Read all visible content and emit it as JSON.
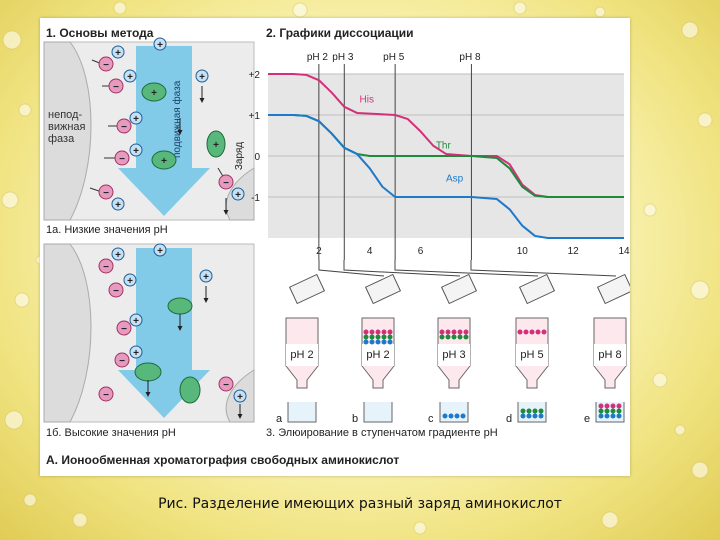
{
  "panel1": {
    "title": "1. Основы метода",
    "stationary_lines": [
      "непод-",
      "вижная",
      "фаза"
    ],
    "mobile_label": "подвижная фаза",
    "label_a": "1а. Низкие значения pH",
    "label_b": "1б. Высокие значения pH"
  },
  "panel2": {
    "title": "2. Графики диссоциации",
    "ph_markers": [
      "pH 2",
      "pH 3",
      "pH 5",
      "pH 8"
    ],
    "y_label": "Заряд",
    "series_labels": [
      "His",
      "Thr",
      "Asp"
    ]
  },
  "panel3": {
    "title": "3. Элюирование в ступенчатом градиенте pH",
    "columns": [
      {
        "ph": "pH 2",
        "letter": "a"
      },
      {
        "ph": "pH 2",
        "letter": "b"
      },
      {
        "ph": "pH 3",
        "letter": "c"
      },
      {
        "ph": "pH 5",
        "letter": "d"
      },
      {
        "ph": "pH 8",
        "letter": "e"
      }
    ]
  },
  "figure_title": "А. Ионообменная хроматография свободных аминокислот",
  "caption": "Рис. Разделение имеющих разный заряд аминокислот",
  "chart_data": {
    "type": "line",
    "title": "2. Графики диссоциации",
    "xlabel": "",
    "ylabel": "Заряд",
    "xlim": [
      0,
      14
    ],
    "ylim": [
      -2,
      2
    ],
    "x_ticks": [
      2,
      4,
      6,
      10,
      12,
      14
    ],
    "y_tick_labels": [
      "+2",
      "+1",
      "0",
      "-1"
    ],
    "y_ticks": [
      2,
      1,
      0,
      -1
    ],
    "series": [
      {
        "name": "His",
        "color": "#d4307a",
        "x": [
          0,
          1,
          1.5,
          2,
          2.5,
          3,
          3.5,
          5,
          5.5,
          6,
          6.5,
          7,
          8,
          9,
          9.5,
          10,
          10.5,
          11,
          14
        ],
        "y": [
          2,
          2,
          1.98,
          1.85,
          1.55,
          1.2,
          1.05,
          1.0,
          0.9,
          0.6,
          0.25,
          0.05,
          0,
          0,
          -0.2,
          -0.7,
          -0.95,
          -1.0,
          -1.0
        ]
      },
      {
        "name": "Thr",
        "color": "#1f8a3c",
        "x": [
          0,
          1,
          1.5,
          2,
          2.5,
          3,
          3.5,
          4,
          8,
          9,
          9.5,
          10,
          10.5,
          11,
          14
        ],
        "y": [
          1,
          1,
          0.98,
          0.85,
          0.55,
          0.2,
          0.05,
          0,
          0,
          -0.05,
          -0.3,
          -0.75,
          -0.97,
          -1.0,
          -1.0
        ]
      },
      {
        "name": "Asp",
        "color": "#1e7ac8",
        "x": [
          0,
          1,
          1.5,
          2,
          2.5,
          3,
          3.5,
          4,
          4.5,
          5,
          8,
          9,
          9.5,
          10,
          10.5,
          11,
          11.5,
          12,
          14
        ],
        "y": [
          1,
          1,
          0.98,
          0.85,
          0.55,
          0.2,
          0.05,
          -0.3,
          -0.75,
          -1.0,
          -1.0,
          -1.05,
          -1.3,
          -1.7,
          -1.95,
          -2.0,
          -2.0,
          -2.0,
          -2.0
        ]
      }
    ]
  }
}
